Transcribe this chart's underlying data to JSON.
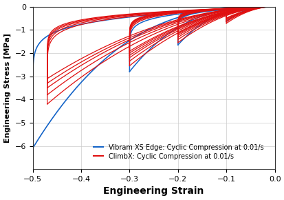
{
  "title": "",
  "xlabel": "Engineering Strain",
  "ylabel": "Engineering Stress [MPa]",
  "xlim": [
    -0.5,
    0.0
  ],
  "ylim": [
    -7,
    0
  ],
  "xticks": [
    -0.5,
    -0.4,
    -0.3,
    -0.2,
    -0.1,
    0
  ],
  "yticks": [
    -6,
    -5,
    -4,
    -3,
    -2,
    -1,
    0
  ],
  "blue_color": "#1464C8",
  "red_color": "#E01010",
  "legend_blue": "Vibram XS Edge: Cyclic Compression at 0.01/s",
  "legend_red": "ClimbX: Cyclic Compression at 0.01/s",
  "background_color": "#FFFFFF",
  "grid_color": "#CCCCCC",
  "xlabel_fontsize": 10,
  "ylabel_fontsize": 8,
  "legend_fontsize": 7
}
